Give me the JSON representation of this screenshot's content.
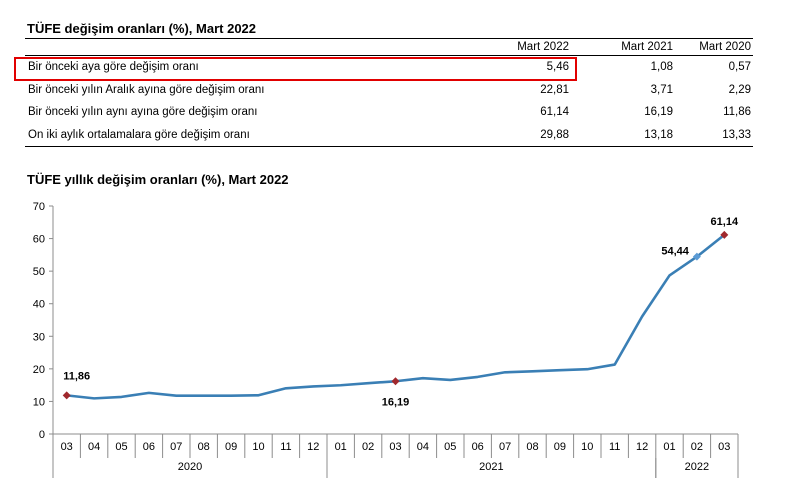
{
  "table": {
    "title": "TÜFE değişim oranları (%), Mart 2022",
    "columns": [
      "Mart 2022",
      "Mart 2021",
      "Mart 2020"
    ],
    "rows": [
      {
        "label": "Bir önceki aya göre değişim oranı",
        "values": [
          "5,46",
          "1,08",
          "0,57"
        ],
        "highlighted": true
      },
      {
        "label": "Bir önceki yılın Aralık ayına göre değişim oranı",
        "values": [
          "22,81",
          "3,71",
          "2,29"
        ]
      },
      {
        "label": "Bir önceki yılın aynı ayına göre değişim oranı",
        "values": [
          "61,14",
          "16,19",
          "11,86"
        ]
      },
      {
        "label": "On iki aylık ortalamalara göre değişim oranı",
        "values": [
          "29,88",
          "13,18",
          "13,33"
        ]
      }
    ],
    "highlight_color": "#e10000"
  },
  "chart_data": {
    "type": "line",
    "title": "TÜFE yıllık değişim oranları (%), Mart 2022",
    "categories": [
      "03",
      "04",
      "05",
      "06",
      "07",
      "08",
      "09",
      "10",
      "11",
      "12",
      "01",
      "02",
      "03",
      "04",
      "05",
      "06",
      "07",
      "08",
      "09",
      "10",
      "11",
      "12",
      "01",
      "02",
      "03"
    ],
    "year_groups": [
      {
        "label": "2020",
        "start": 0,
        "end": 9
      },
      {
        "label": "2021",
        "start": 10,
        "end": 21
      },
      {
        "label": "2022",
        "start": 22,
        "end": 24
      }
    ],
    "series": [
      {
        "values": [
          11.86,
          10.94,
          11.39,
          12.62,
          11.76,
          11.77,
          11.75,
          11.89,
          14.03,
          14.6,
          14.97,
          15.61,
          16.19,
          17.14,
          16.59,
          17.53,
          18.95,
          19.25,
          19.58,
          19.89,
          21.31,
          36.08,
          48.69,
          54.44,
          61.14
        ],
        "color": "#3a7fb5"
      }
    ],
    "markers": [
      {
        "index": 0,
        "label": "11,86",
        "color": "#a0282d",
        "shape": "diamond"
      },
      {
        "index": 12,
        "label": "16,19",
        "color": "#a0282d",
        "shape": "diamond"
      },
      {
        "index": 23,
        "label": "54,44",
        "color": "#5b9bd5",
        "shape": "diamond"
      },
      {
        "index": 24,
        "label": "61,14",
        "color": "#a0282d",
        "shape": "diamond"
      }
    ],
    "yticks": [
      0,
      10,
      20,
      30,
      40,
      50,
      60,
      70
    ],
    "ylim": [
      0,
      70
    ],
    "xlabel": "",
    "ylabel": "",
    "grid": false
  }
}
